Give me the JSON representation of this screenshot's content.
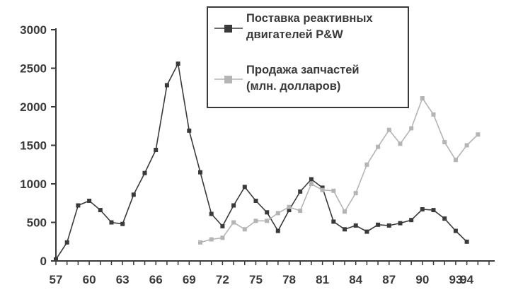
{
  "chart_data": {
    "type": "line",
    "title": "",
    "xlabel": "",
    "ylabel": "",
    "xlim": [
      57,
      96
    ],
    "ylim": [
      0,
      3000
    ],
    "x_ticks": [
      57,
      60,
      63,
      66,
      69,
      72,
      75,
      78,
      81,
      84,
      87,
      90,
      93,
      94
    ],
    "x_tick_labels": [
      "57",
      "60",
      "63",
      "66",
      "69",
      "72",
      "75",
      "78",
      "81",
      "84",
      "87",
      "90",
      "93",
      "94"
    ],
    "y_ticks": [
      0,
      500,
      1000,
      1500,
      2000,
      2500,
      3000
    ],
    "y_tick_labels": [
      "0",
      "500",
      "1000",
      "1500",
      "2000",
      "2500",
      "3000"
    ],
    "grid": false,
    "legend_position": "top-right",
    "series": [
      {
        "name": "Поставка реактивных двигателей P&W",
        "name_lines": [
          "Поставка реактивных",
          "двигателей P&W"
        ],
        "color": "#3a3a3a",
        "x": [
          57,
          58,
          59,
          60,
          61,
          62,
          63,
          64,
          65,
          66,
          67,
          68,
          69,
          70,
          71,
          72,
          73,
          74,
          75,
          76,
          77,
          78,
          79,
          80,
          81,
          82,
          83,
          84,
          85,
          86,
          87,
          88,
          89,
          90,
          91,
          92,
          93,
          94,
          95,
          96
        ],
        "y": [
          20,
          240,
          720,
          780,
          660,
          500,
          480,
          860,
          1140,
          1440,
          2280,
          2560,
          1690,
          1150,
          610,
          450,
          720,
          960,
          780,
          630,
          390,
          660,
          900,
          1060,
          950,
          510,
          410,
          460,
          380,
          470,
          460,
          490,
          530,
          670,
          660,
          550,
          390,
          250,
          null,
          null
        ]
      },
      {
        "name": "Продажа запчастей (млн. долларов)",
        "name_lines": [
          "Продажа запчастей",
          "(млн. долларов)"
        ],
        "color": "#b4b4b4",
        "x": [
          70,
          71,
          72,
          73,
          74,
          75,
          76,
          77,
          78,
          79,
          80,
          81,
          82,
          83,
          84,
          85,
          86,
          87,
          88,
          89,
          90,
          91,
          92,
          93,
          94,
          95
        ],
        "y": [
          240,
          280,
          300,
          500,
          410,
          520,
          520,
          620,
          700,
          650,
          1000,
          920,
          910,
          640,
          880,
          1250,
          1480,
          1700,
          1520,
          1720,
          2110,
          1900,
          1540,
          1310,
          1500,
          1640
        ]
      }
    ]
  }
}
